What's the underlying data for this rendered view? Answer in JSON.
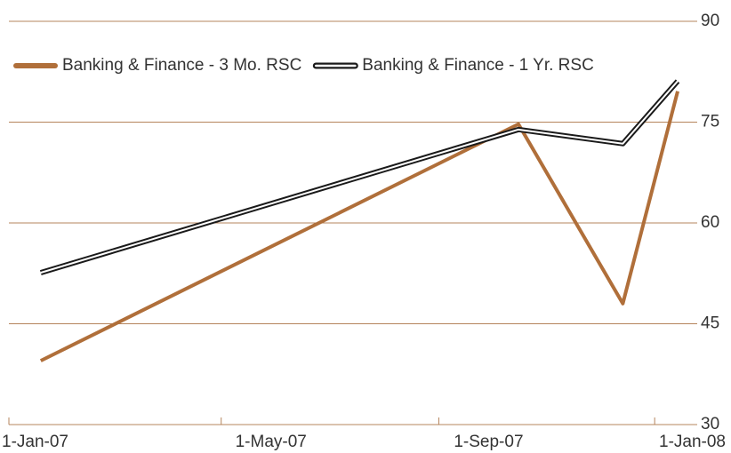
{
  "chart_data": {
    "type": "line",
    "x": [
      "2007-01-19",
      "2007-10-16",
      "2007-12-14",
      "2008-01-14"
    ],
    "series": [
      {
        "name": "Banking & Finance - 3 Mo. RSC",
        "color": "#b06f3a",
        "values": [
          39.5,
          74.7,
          48,
          79.6
        ]
      },
      {
        "name": "Banking & Finance - 1 Yr. RSC",
        "color": "#1a1a1a",
        "values": [
          52.6,
          73.9,
          71.8,
          81.1
        ]
      }
    ],
    "xlim": [
      "2007-01-01",
      "2008-01-17"
    ],
    "xticks": [
      {
        "value": "2007-01-01",
        "label": "1-Jan-07"
      },
      {
        "value": "2007-05-01",
        "label": "1-May-07"
      },
      {
        "value": "2007-09-01",
        "label": "1-Sep-07"
      },
      {
        "value": "2008-01-01",
        "label": "1-Jan-08"
      }
    ],
    "ylim": [
      30,
      90
    ],
    "yticks": [
      30,
      45,
      60,
      75,
      90
    ],
    "grid": true,
    "legend": "top-left"
  }
}
